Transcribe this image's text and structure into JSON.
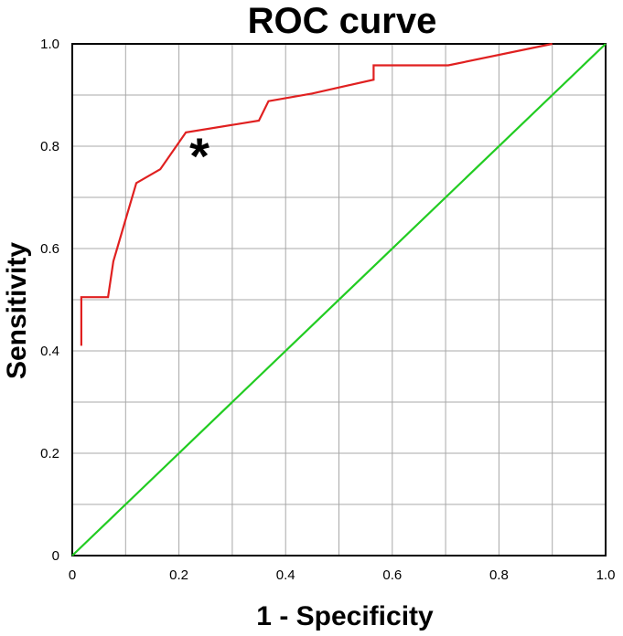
{
  "chart_data": {
    "type": "line",
    "title": "ROC curve",
    "xlabel": "1 - Specificity",
    "ylabel": "Sensitivity",
    "xlim": [
      0,
      1.0
    ],
    "ylim": [
      0,
      1.0
    ],
    "x_tick_labels": [
      "0",
      "0.2",
      "0.4",
      "0.6",
      "0.8",
      "1.0"
    ],
    "y_tick_labels": [
      "0",
      "0.2",
      "0.4",
      "0.6",
      "0.8",
      "1.0"
    ],
    "x_ticks": [
      0,
      0.2,
      0.4,
      0.6,
      0.8,
      1.0
    ],
    "y_ticks": [
      0,
      0.2,
      0.4,
      0.6,
      0.8,
      1.0
    ],
    "grid": true,
    "annotation": "*",
    "colors": {
      "roc": "#e02020",
      "reference": "#22cc22"
    },
    "series": [
      {
        "x": [
          0.017,
          0.017,
          0.067,
          0.077,
          0.12,
          0.165,
          0.213,
          0.35,
          0.368,
          0.45,
          0.565,
          0.565,
          0.705,
          0.9
        ],
        "y": [
          0.41,
          0.505,
          0.505,
          0.575,
          0.728,
          0.755,
          0.827,
          0.85,
          0.888,
          0.903,
          0.93,
          0.958,
          0.958,
          1.0
        ]
      },
      {
        "x": [
          0,
          1.0
        ],
        "y": [
          0,
          1.0
        ]
      }
    ]
  }
}
